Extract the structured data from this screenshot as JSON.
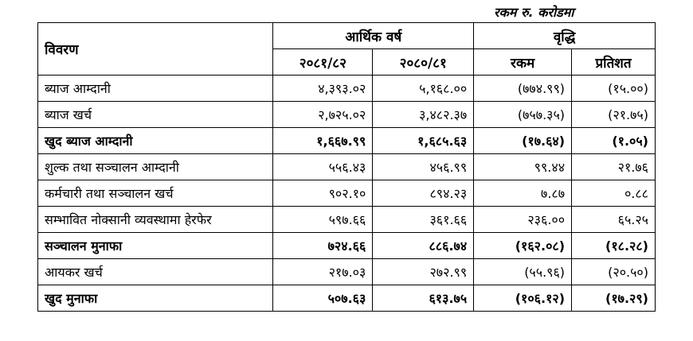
{
  "unit_note": "रकम रु. करोडमा",
  "headers": {
    "particulars": "विवरण",
    "fiscal_year": "आर्थिक वर्ष",
    "growth": "वृद्धि",
    "fy1": "२०८१/८२",
    "fy2": "२०८०/८१",
    "amount": "रकम",
    "percent": "प्रतिशत"
  },
  "rows": [
    {
      "label": "ब्याज आम्दानी",
      "v1": "४,३९३.०२",
      "v2": "५,१६८.००",
      "amt": "(७७४.९९)",
      "pct": "(१५.००)",
      "bold": false
    },
    {
      "label": "ब्याज खर्च",
      "v1": "२,७२५.०२",
      "v2": "३,४८२.३७",
      "amt": "(७५७.३५)",
      "pct": "(२१.७५)",
      "bold": false
    },
    {
      "label": "खुद ब्याज आम्दानी",
      "v1": "१,६६७.९९",
      "v2": "१,६८५.६३",
      "amt": "(१७.६४)",
      "pct": "(१.०५)",
      "bold": true
    },
    {
      "label": "शुल्क तथा सञ्चालन आम्दानी",
      "v1": "५५६.४३",
      "v2": "४५६.९९",
      "amt": "९९.४४",
      "pct": "२१.७६",
      "bold": false
    },
    {
      "label": "कर्मचारी तथा सञ्चालन खर्च",
      "v1": "९०२.१०",
      "v2": "८९४.२३",
      "amt": "७.८७",
      "pct": "०.८८",
      "bold": false
    },
    {
      "label": "सम्भावित नोक्सानी व्यवस्थामा हेरफेर",
      "v1": "५९७.६६",
      "v2": "३६१.६६",
      "amt": "२३६.००",
      "pct": "६५.२५",
      "bold": false
    },
    {
      "label": "सञ्चालन मुनाफा",
      "v1": "७२४.६६",
      "v2": "८८६.७४",
      "amt": "(१६२.०८)",
      "pct": "(१८.२८)",
      "bold": true
    },
    {
      "label": "आयकर खर्च",
      "v1": "२१७.०३",
      "v2": "२७२.९९",
      "amt": "(५५.९६)",
      "pct": "(२०.५०)",
      "bold": false
    },
    {
      "label": "खुद मुनाफा",
      "v1": "५०७.६३",
      "v2": "६१३.७५",
      "amt": "(१०६.१२)",
      "pct": "(१७.२९)",
      "bold": true
    }
  ]
}
